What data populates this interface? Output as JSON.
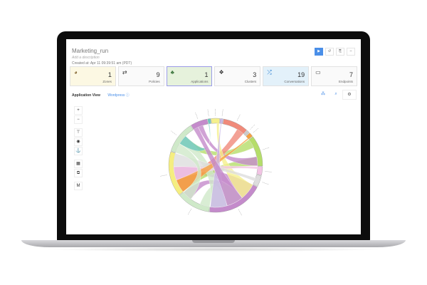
{
  "header": {
    "title": "Marketing_run",
    "description_placeholder": "Add a description",
    "created": "Created at: Apr 11 09:39:51 am (PDT)"
  },
  "actions": [
    {
      "icon": "play-icon",
      "label": "▶"
    },
    {
      "icon": "undo-icon",
      "label": "↺"
    },
    {
      "icon": "export-icon",
      "label": "⎘"
    },
    {
      "icon": "minus-icon",
      "label": "–"
    }
  ],
  "cards": [
    {
      "icon": "pie-chart-icon",
      "glyph": "◕",
      "value": "1",
      "label": "Zones",
      "bg": "#fcf8e3",
      "color": "#8a6d3b"
    },
    {
      "icon": "transfer-icon",
      "glyph": "⇄",
      "value": "9",
      "label": "Policies",
      "bg": "#fafafa",
      "color": "#333"
    },
    {
      "icon": "sitemap-icon",
      "glyph": "♣",
      "value": "1",
      "label": "Applications",
      "bg": "#e6f2dc",
      "color": "#3c763d",
      "border": "#9b9be8"
    },
    {
      "icon": "cubes-icon",
      "glyph": "❖",
      "value": "3",
      "label": "Clusters",
      "bg": "#fafafa",
      "color": "#333"
    },
    {
      "icon": "shuffle-icon",
      "glyph": "⤮",
      "value": "19",
      "label": "Conversations",
      "bg": "#e3f1fa",
      "color": "#2b7fd1"
    },
    {
      "icon": "monitor-icon",
      "glyph": "▭",
      "value": "7",
      "label": "Endpoints",
      "bg": "#fafafa",
      "color": "#333"
    }
  ],
  "view": {
    "tab": "Application View",
    "app": "Wordpress ⓘ"
  },
  "right_tools": [
    {
      "icon": "cluster-icon",
      "glyph": "⁂"
    },
    {
      "icon": "search-icon",
      "glyph": "⌕"
    },
    {
      "icon": "settings-icon",
      "glyph": "⚙"
    }
  ],
  "left_tools": [
    {
      "icon": "zoom-in-icon",
      "glyph": "+"
    },
    {
      "icon": "zoom-out-icon",
      "glyph": "−"
    },
    {
      "icon": "filter-icon",
      "glyph": "⊤"
    },
    {
      "icon": "eye-icon",
      "glyph": "◉"
    },
    {
      "icon": "anchor-icon",
      "glyph": "⚓"
    },
    {
      "icon": "grid-icon",
      "glyph": "▦"
    },
    {
      "icon": "layout-icon",
      "glyph": "⧉"
    },
    {
      "icon": "map-icon",
      "glyph": "M"
    }
  ],
  "chord_groups": [
    {
      "color": "#c48bcb",
      "share": 0.06
    },
    {
      "color": "#6fc8c0",
      "share": 0.01
    },
    {
      "color": "#f5f08c",
      "share": 0.03
    },
    {
      "color": "#c9b8e6",
      "share": 0.01
    },
    {
      "color": "#f08a7a",
      "share": 0.09
    },
    {
      "color": "#cccccc",
      "share": 0.01
    },
    {
      "color": "#f5a040",
      "share": 0.015
    },
    {
      "color": "#b5dd6a",
      "share": 0.11
    },
    {
      "color": "#f2c4e4",
      "share": 0.03
    },
    {
      "color": "#dddddd",
      "share": 0.04
    },
    {
      "color": "#c48bcb",
      "share": 0.2
    },
    {
      "color": "#cfe9c9",
      "share": 0.12
    },
    {
      "color": "#f5ee80",
      "share": 0.16
    },
    {
      "color": "#cfe9c9",
      "share": 0.115
    }
  ]
}
